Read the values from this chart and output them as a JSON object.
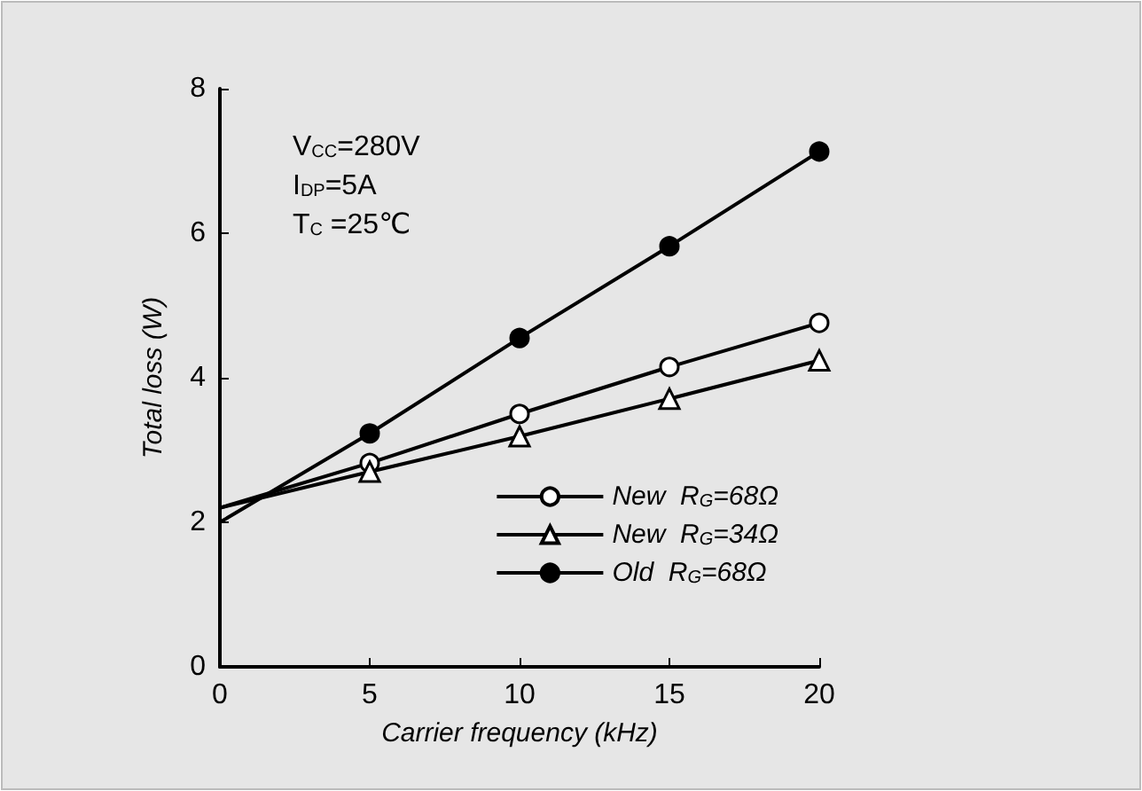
{
  "chart_data": {
    "type": "line",
    "xlabel": "Carrier frequency (kHz)",
    "ylabel": "Total loss (W)",
    "x": [
      0,
      5,
      10,
      15,
      20
    ],
    "series": [
      {
        "name": "New  R$_{G}$=68Ω",
        "color": "#000000",
        "marker": "circle_open",
        "values": [
          2.2,
          2.82,
          3.5,
          4.15,
          4.76
        ]
      },
      {
        "name": "New  R$_{G}$=34Ω",
        "color": "#000000",
        "marker": "triangle_open",
        "values": [
          2.2,
          2.7,
          3.19,
          3.71,
          4.24
        ]
      },
      {
        "name": "Old  R$_{G}$=68Ω",
        "color": "#000000",
        "marker": "circle",
        "values": [
          2.0,
          3.23,
          4.55,
          5.82,
          7.13
        ]
      }
    ],
    "xlim": [
      0,
      20
    ],
    "xticks": [
      0,
      5,
      10,
      15,
      20
    ],
    "ylim": [
      0,
      8
    ],
    "yticks": [
      0,
      2,
      4,
      6,
      8
    ],
    "annotations": [
      "V$_{CC}$=280V",
      "I$_{DP}$=5A",
      "T$_{C}$ =25℃"
    ],
    "legend": "bottom right",
    "grid": false,
    "line_style": "solid"
  }
}
